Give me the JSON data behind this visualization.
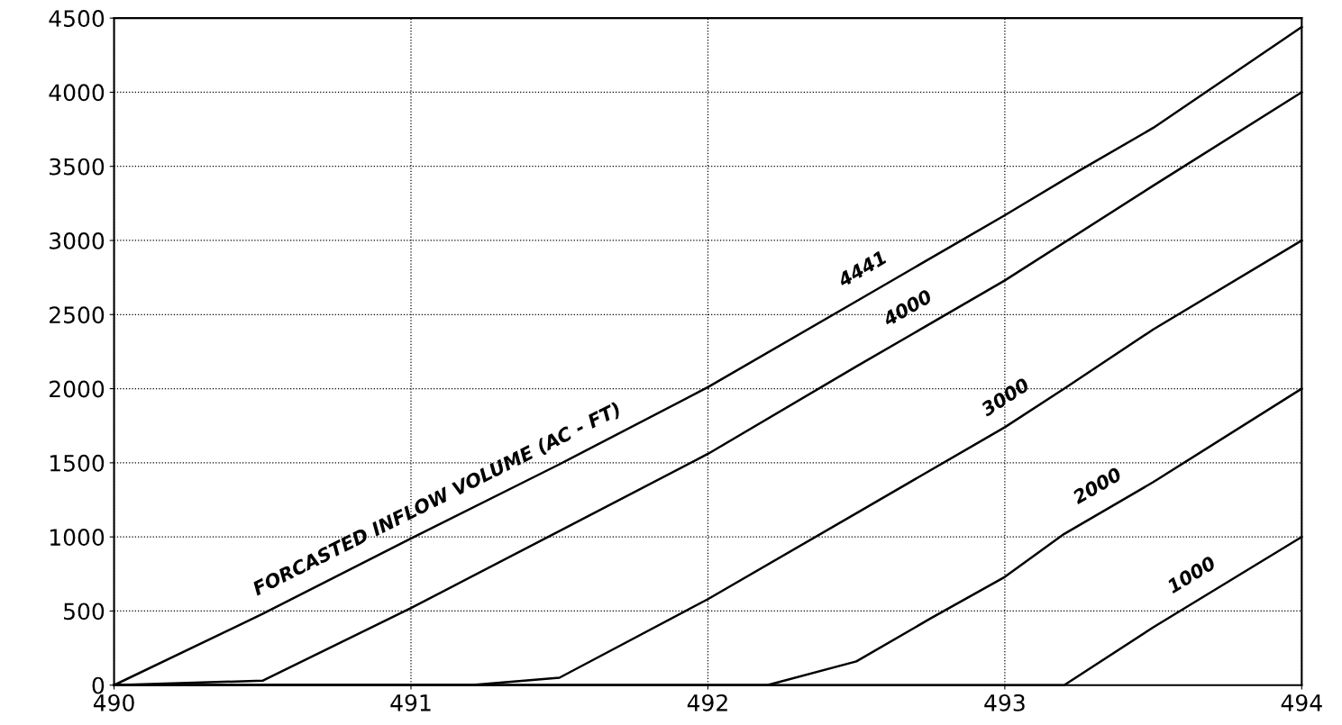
{
  "chart_data": {
    "type": "line",
    "xlim": [
      490,
      494
    ],
    "ylim": [
      0,
      4500
    ],
    "xticks": [
      490,
      491,
      492,
      493,
      494
    ],
    "yticks": [
      0,
      500,
      1000,
      1500,
      2000,
      2500,
      3000,
      3500,
      4000,
      4500
    ],
    "grid": true,
    "line_style": "solid",
    "marker": "none",
    "series": [
      {
        "name": "4441",
        "color": "#000000",
        "x": [
          490,
          490.5,
          491,
          491.5,
          492,
          492.5,
          493,
          493.25,
          493.5,
          494
        ],
        "values": [
          0,
          480,
          990,
          1490,
          2010,
          2590,
          3170,
          3470,
          3760,
          4440
        ]
      },
      {
        "name": "4000",
        "color": "#000000",
        "x": [
          490,
          490.5,
          491,
          491.5,
          492,
          492.5,
          493,
          493.5,
          494
        ],
        "values": [
          0,
          30,
          520,
          1040,
          1560,
          2150,
          2730,
          3370,
          4000
        ]
      },
      {
        "name": "3000",
        "color": "#000000",
        "x": [
          490,
          491.2,
          491.5,
          492,
          492.5,
          493,
          493.2,
          493.5,
          494
        ],
        "values": [
          0,
          0,
          50,
          580,
          1160,
          1740,
          2000,
          2400,
          3000
        ]
      },
      {
        "name": "2000",
        "color": "#000000",
        "x": [
          490,
          492.2,
          492.5,
          492.75,
          493,
          493.2,
          493.5,
          494
        ],
        "values": [
          0,
          0,
          160,
          450,
          730,
          1020,
          1370,
          2000
        ]
      },
      {
        "name": "1000",
        "color": "#000000",
        "x": [
          490,
          493.2,
          493.5,
          494
        ],
        "values": [
          0,
          0,
          390,
          1000
        ]
      }
    ],
    "annotations": [
      "FORCASTED INFLOW VOLUME (AC - FT)"
    ]
  }
}
